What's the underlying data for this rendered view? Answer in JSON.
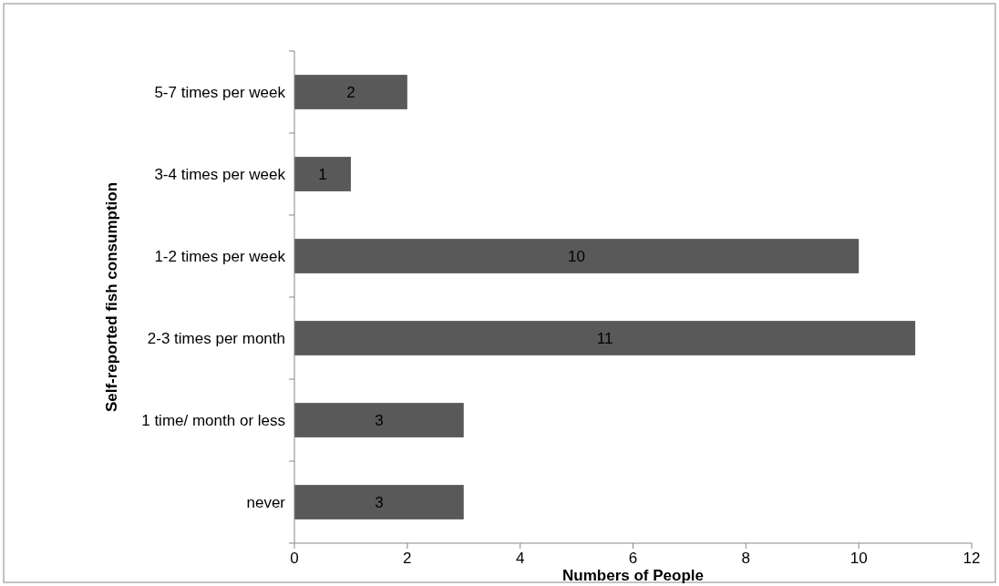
{
  "chart_data": {
    "type": "bar",
    "orientation": "horizontal",
    "xlabel": "Numbers of People",
    "ylabel": "Self-reported fish consumption",
    "categories": [
      "5-7 times per week",
      "3-4 times per week",
      "1-2 times per week",
      "2-3 times per month",
      "1 time/ month or less",
      "never"
    ],
    "values": [
      2,
      1,
      10,
      11,
      3,
      3
    ],
    "color": "#595959",
    "data_labels": true,
    "xlim": [
      0,
      12
    ],
    "xticks": [
      0,
      2,
      4,
      6,
      8,
      10,
      12
    ],
    "grid": false
  }
}
